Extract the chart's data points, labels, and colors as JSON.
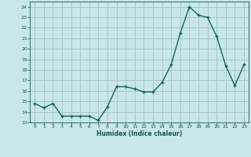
{
  "title": "",
  "xlabel": "Humidex (Indice chaleur)",
  "x": [
    0,
    1,
    2,
    3,
    4,
    5,
    6,
    7,
    8,
    9,
    10,
    11,
    12,
    13,
    14,
    15,
    16,
    17,
    18,
    19,
    20,
    21,
    22,
    23
  ],
  "y": [
    14.8,
    14.4,
    14.8,
    13.6,
    13.6,
    13.6,
    13.6,
    13.2,
    14.5,
    16.4,
    16.4,
    16.2,
    15.9,
    15.9,
    16.8,
    18.5,
    21.5,
    24.0,
    23.2,
    23.0,
    21.2,
    18.4,
    16.5,
    18.5
  ],
  "line_color": "#1a6060",
  "marker_color": "#1a6060",
  "bg_color": "#c8e8e8",
  "grid_color": "#a8c8c8",
  "axis_label_color": "#1a5050",
  "tick_color": "#1a5050",
  "ylim": [
    13,
    24.5
  ],
  "xlim": [
    -0.5,
    23.5
  ],
  "yticks": [
    13,
    14,
    15,
    16,
    17,
    18,
    19,
    20,
    21,
    22,
    23,
    24
  ],
  "xticks": [
    0,
    1,
    2,
    3,
    4,
    5,
    6,
    7,
    8,
    9,
    10,
    11,
    12,
    13,
    14,
    15,
    16,
    17,
    18,
    19,
    20,
    21,
    22,
    23
  ]
}
